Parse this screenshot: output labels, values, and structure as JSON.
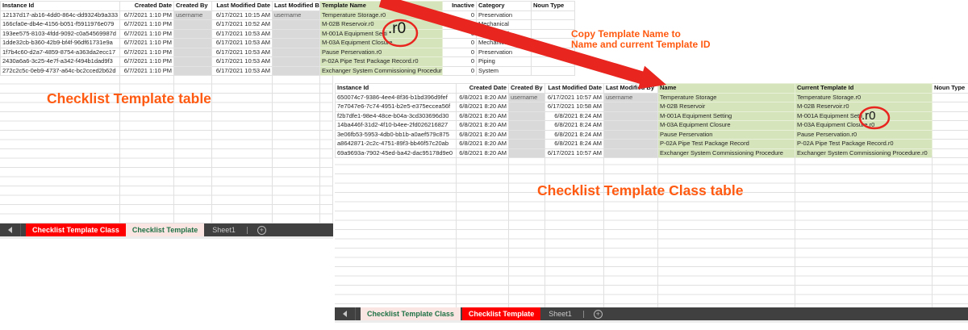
{
  "colors": {
    "green_highlight": "#d6e4bc",
    "gray_cell": "#d9d9d9",
    "tab_bar_bg": "#404040",
    "tab_red_bg": "#ff0000",
    "tab_active_text": "#1e7145",
    "annotation_orange": "#ff5a11",
    "marker_red": "#e8251f"
  },
  "annotations": {
    "left_title": "Checklist Template table",
    "right_title": "Checklist Template Class table",
    "copy_note_line1": "Copy Template Name to",
    "copy_note_line2": "Name and current Template ID",
    "callout_left": ".r0",
    "callout_right": ".r0",
    "new_sheet_glyph": "+"
  },
  "left_sheet": {
    "columns": [
      "Instance Id",
      "Created Date",
      "Created By",
      "Last Modified Date",
      "Last Modified By",
      "Template Name",
      "Inactive",
      "Category",
      "Noun Type"
    ],
    "rows": [
      [
        "12137d17-ab16-4dd0-864c-dd9324b9a333",
        "6/7/2021 1:10 PM",
        "username",
        "6/17/2021 10:15 AM",
        "username",
        "Temperature Storage.r0",
        "0",
        "Preservation",
        ""
      ],
      [
        "166cfa0e-db4e-4156-b051-f5911976e079",
        "6/7/2021 1:10 PM",
        "",
        "6/17/2021 10:52 AM",
        "",
        "M-02B Reservoir.r0",
        "0",
        "Mechanical",
        ""
      ],
      [
        "193ee575-8103-4fdd-9092-c0a54569987d",
        "6/7/2021 1:10 PM",
        "",
        "6/17/2021 10:53 AM",
        "",
        "M-001A Equipment Setti",
        "0",
        "Mechanical",
        ""
      ],
      [
        "1dde32cb-b360-42b9-bf4f-96df61731e9a",
        "6/7/2021 1:10 PM",
        "",
        "6/17/2021 10:53 AM",
        "",
        "M-03A Equipment Closure",
        "0",
        "Mechanical",
        ""
      ],
      [
        "1f7b4c60-d2a7-4859-8754-a363da2ecc17",
        "6/7/2021 1:10 PM",
        "",
        "6/17/2021 10:53 AM",
        "",
        "Pause Perservation.r0",
        "0",
        "Preservation",
        ""
      ],
      [
        "2430a6a6-3c25-4e7f-a342-f494b1dad9f3",
        "6/7/2021 1:10 PM",
        "",
        "6/17/2021 10:53 AM",
        "",
        "P-02A Pipe Test Package Record.r0",
        "0",
        "Piping",
        ""
      ],
      [
        "272c2c5c-0eb9-4737-a64c-bc2cced2b62d",
        "6/7/2021 1:10 PM",
        "",
        "6/17/2021 10:53 AM",
        "",
        "Exchanger System Commissioning Procedure.r0",
        "0",
        "System",
        ""
      ]
    ],
    "tab_bar": {
      "tabs": [
        "Checklist Template Class",
        "Checklist Template",
        "Sheet1"
      ]
    }
  },
  "right_sheet": {
    "columns": [
      "Instance Id",
      "Created Date",
      "Created By",
      "Last Modified Date",
      "Last Modified By",
      "Name",
      "Current Template Id",
      "Noun Type"
    ],
    "rows": [
      [
        "650074c7-9386-4ee4-8f36-b1bd396d9fef",
        "6/8/2021 8:20 AM",
        "username",
        "6/17/2021 10:57 AM",
        "username",
        "Temperature Storage",
        "Temperature Storage.r0",
        ""
      ],
      [
        "7e7047e6-7c74-4951-b2e5-e375eccea56f",
        "6/8/2021 8:20 AM",
        "",
        "6/17/2021 10:58 AM",
        "",
        "M-02B Reservoir",
        "M-02B Reservoir.r0",
        ""
      ],
      [
        "f2b7dfe1-98e4-48ce-b04a-3cd303696d30",
        "6/8/2021 8:20 AM",
        "",
        "6/8/2021 8:24 AM",
        "",
        "M-001A Equipment Setting",
        "M-001A Equipment Setti",
        ""
      ],
      [
        "14ba446f-31d2-4f10-b4ee-2fd026216827",
        "6/8/2021 8:20 AM",
        "",
        "6/8/2021 8:24 AM",
        "",
        "M-03A Equipment Closure",
        "M-03A Equipment Closure.r0",
        ""
      ],
      [
        "3e06fb53-5953-4db0-bb1b-a0aef579c875",
        "6/8/2021 8:20 AM",
        "",
        "6/8/2021 8:24 AM",
        "",
        "Pause Perservation",
        "Pause Perservation.r0",
        ""
      ],
      [
        "a8642871-2c2c-4751-89f3-bb46f57c20ab",
        "6/8/2021 8:20 AM",
        "",
        "6/8/2021 8:24 AM",
        "",
        "P-02A Pipe Test Package Record",
        "P-02A Pipe Test Package Record.r0",
        ""
      ],
      [
        "69a9693a-7902-45ed-ba42-dac95178d9e0",
        "6/8/2021 8:20 AM",
        "",
        "6/17/2021 10:57 AM",
        "",
        "Exchanger System Commissioning Procedure",
        "Exchanger System Commissioning Procedure.r0",
        ""
      ]
    ],
    "tab_bar": {
      "tabs": [
        "Checklist Template Class",
        "Checklist Template",
        "Sheet1"
      ]
    }
  }
}
